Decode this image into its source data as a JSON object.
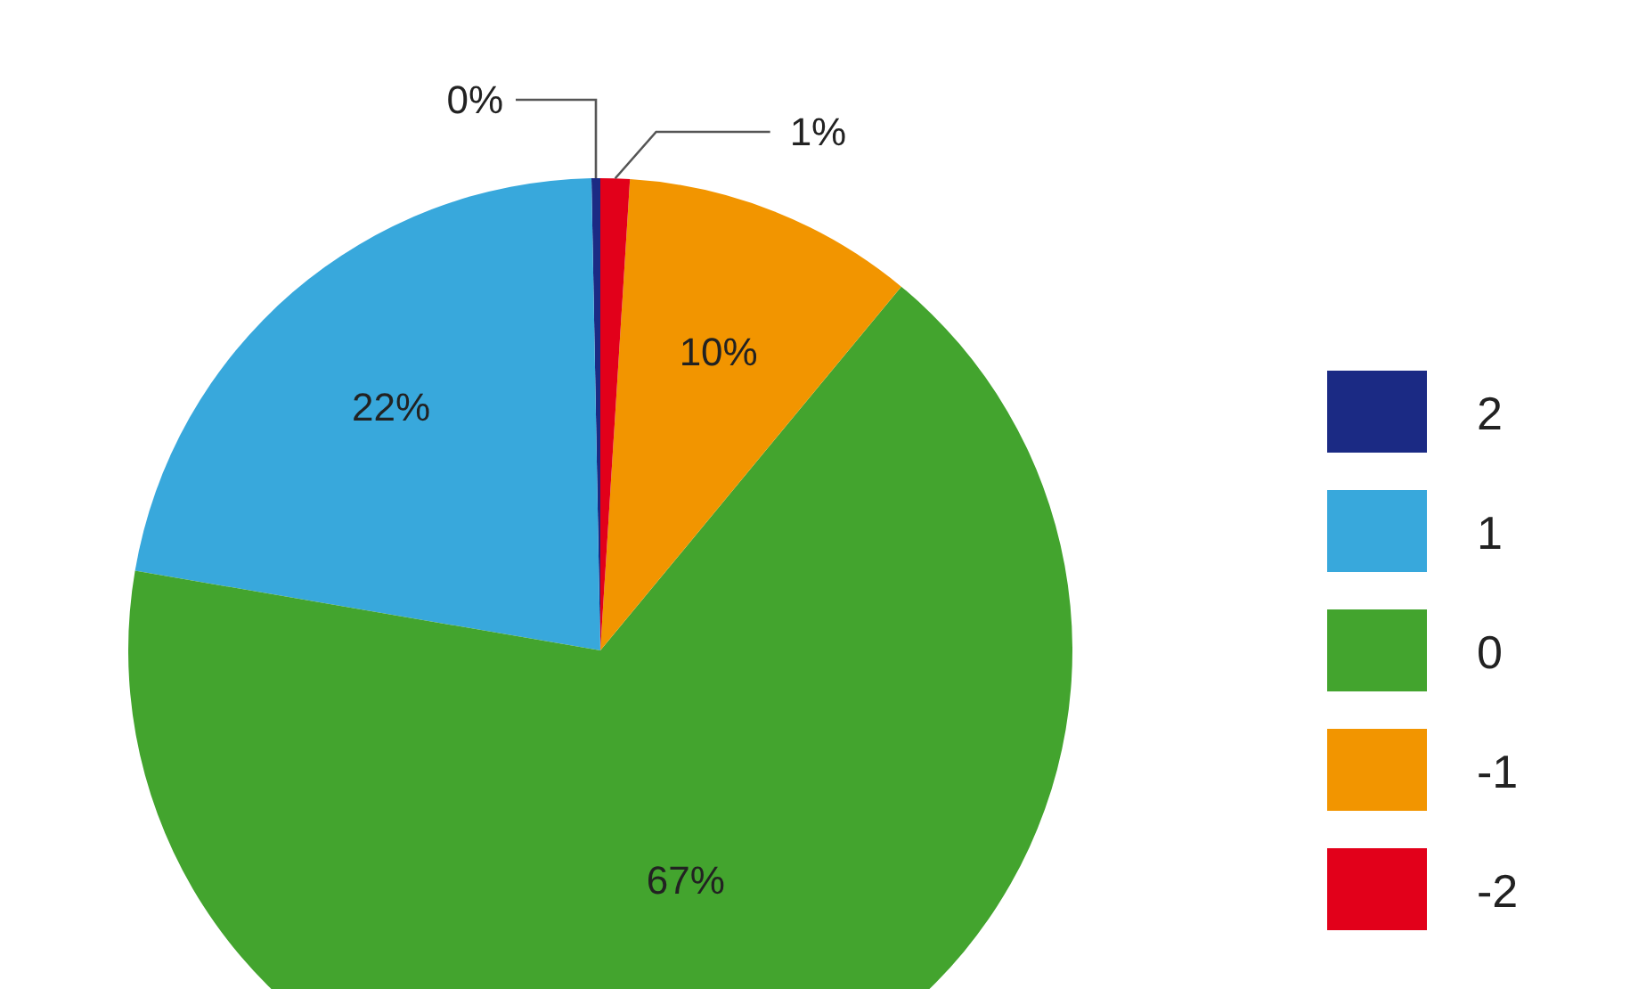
{
  "chart_data": {
    "type": "pie",
    "categories": [
      "2",
      "1",
      "0",
      "-1",
      "-2"
    ],
    "values": [
      0.3,
      22,
      66.7,
      10,
      1
    ],
    "value_labels": [
      "0%",
      "22%",
      "67%",
      "10%",
      "1%"
    ],
    "colors": [
      "#1b2a84",
      "#38a8dc",
      "#43a42e",
      "#f29500",
      "#e2001a"
    ],
    "legend": "right"
  }
}
